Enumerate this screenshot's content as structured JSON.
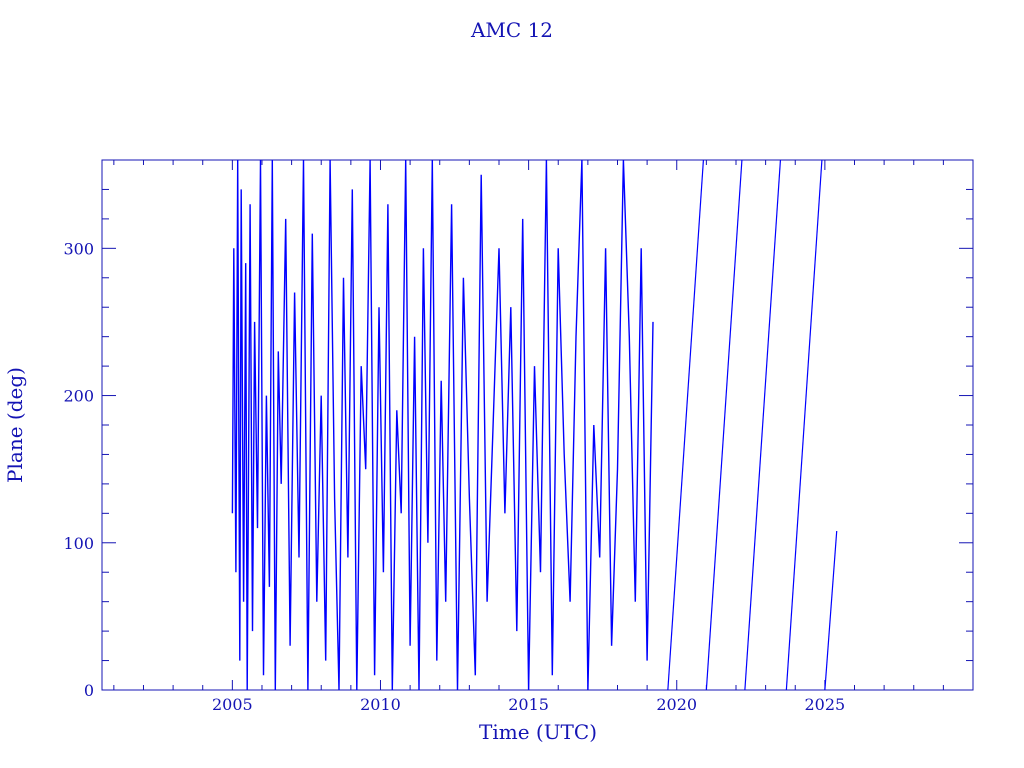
{
  "chart_data": {
    "type": "line",
    "title": "AMC 12",
    "xlabel": "Time (UTC)",
    "ylabel": "Plane (deg)",
    "xlim": [
      2000.6,
      2030.0
    ],
    "ylim": [
      0,
      360
    ],
    "x_ticks": [
      2005,
      2010,
      2015,
      2020,
      2025
    ],
    "x_tick_labels": [
      "2005",
      "2010",
      "2015",
      "2020",
      "2025"
    ],
    "y_ticks": [
      0,
      100,
      200,
      300
    ],
    "y_tick_labels": [
      "0",
      "100",
      "200",
      "300"
    ],
    "grid": false,
    "colors": {
      "axis": "#1414b4",
      "series": "#0000ff"
    },
    "series": [
      {
        "x": [
          2005.0,
          2005.05,
          2005.12,
          2005.18,
          2005.25,
          2005.3,
          2005.38,
          2005.45,
          2005.5,
          2005.6,
          2005.68,
          2005.75,
          2005.85,
          2005.95,
          2006.05,
          2006.15,
          2006.25,
          2006.35,
          2006.45,
          2006.55,
          2006.65,
          2006.8,
          2006.95,
          2007.1,
          2007.25,
          2007.4,
          2007.55,
          2007.7,
          2007.85,
          2008.0,
          2008.15,
          2008.3,
          2008.45,
          2008.6,
          2008.75,
          2008.9,
          2009.05,
          2009.2,
          2009.35,
          2009.5,
          2009.65,
          2009.8,
          2009.95,
          2010.1,
          2010.25,
          2010.4,
          2010.55,
          2010.7,
          2010.85,
          2011.0,
          2011.15,
          2011.3,
          2011.45,
          2011.6,
          2011.75,
          2011.9,
          2012.05,
          2012.2,
          2012.4,
          2012.6,
          2012.8,
          2013.0,
          2013.2,
          2013.4,
          2013.6,
          2013.8,
          2014.0,
          2014.2,
          2014.4,
          2014.6,
          2014.8,
          2015.0,
          2015.2,
          2015.4,
          2015.6,
          2015.8,
          2016.0,
          2016.2,
          2016.4,
          2016.6,
          2016.8,
          2017.0,
          2017.2,
          2017.4,
          2017.6,
          2017.8,
          2018.0,
          2018.2,
          2018.4,
          2018.6,
          2018.8,
          2019.0,
          2019.2
        ],
        "y": [
          120,
          300,
          80,
          360,
          20,
          340,
          60,
          290,
          0,
          330,
          40,
          250,
          110,
          360,
          10,
          200,
          70,
          360,
          0,
          230,
          140,
          320,
          30,
          270,
          90,
          360,
          0,
          310,
          60,
          200,
          20,
          360,
          130,
          0,
          280,
          90,
          340,
          0,
          220,
          150,
          360,
          10,
          260,
          80,
          330,
          0,
          190,
          120,
          360,
          30,
          240,
          0,
          300,
          100,
          360,
          20,
          210,
          60,
          330,
          0,
          280,
          130,
          10,
          350,
          60,
          180,
          300,
          120,
          260,
          40,
          320,
          0,
          220,
          80,
          360,
          10,
          300,
          160,
          60,
          240,
          360,
          0,
          180,
          90,
          300,
          30,
          150,
          360,
          240,
          60,
          300,
          20,
          250
        ],
        "decay_lines": [
          {
            "start": [
              2019.7,
              0
            ],
            "end": [
              2020.9,
              360
            ]
          },
          {
            "start": [
              2021.0,
              0
            ],
            "end": [
              2022.2,
              360
            ]
          },
          {
            "start": [
              2022.3,
              0
            ],
            "end": [
              2023.5,
              360
            ]
          },
          {
            "start": [
              2023.7,
              0
            ],
            "end": [
              2024.9,
              360
            ]
          },
          {
            "start": [
              2025.0,
              0
            ],
            "end": [
              2025.4,
              108
            ]
          }
        ]
      }
    ]
  }
}
